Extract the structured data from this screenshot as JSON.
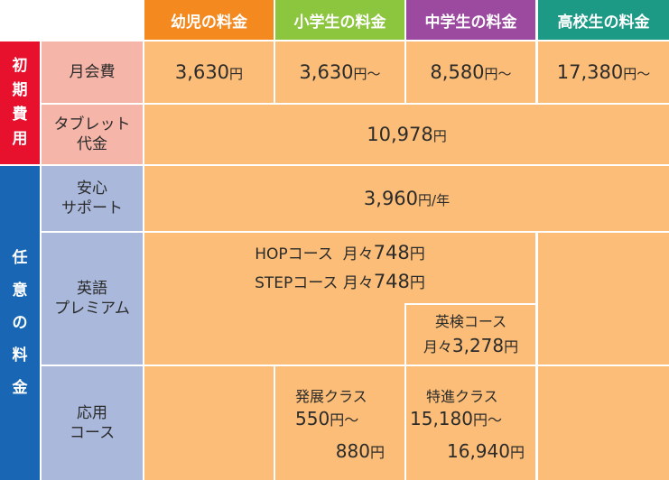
{
  "columns": {
    "kinder": {
      "label": "幼児の料金",
      "color": "#f4891f"
    },
    "elementary": {
      "label": "小学生の料金",
      "color": "#8cc63f"
    },
    "junior": {
      "label": "中学生の料金",
      "color": "#9b4aa0"
    },
    "high": {
      "label": "高校生の料金",
      "color": "#1c9a86"
    }
  },
  "groups": {
    "initial": {
      "chars": [
        "初",
        "期",
        "費",
        "用"
      ],
      "color": "#e8112d"
    },
    "optional": {
      "chars": [
        "任",
        "意",
        "の",
        "料",
        "金"
      ],
      "color": "#1966b4"
    }
  },
  "rows": {
    "monthly": {
      "label": "月会費",
      "kinder": {
        "num": "3,630",
        "unit": "円"
      },
      "elementary": {
        "num": "3,630",
        "unit": "円～"
      },
      "junior": {
        "num": "8,580",
        "unit": "円～"
      },
      "high": {
        "num": "17,380",
        "unit": "円～"
      }
    },
    "tablet": {
      "label_line1": "タブレット",
      "label_line2": "代金",
      "price": {
        "num": "10,978",
        "unit": "円"
      }
    },
    "support": {
      "label_line1": "安心",
      "label_line2": "サポート",
      "price": {
        "num": "3,960",
        "unit": "円/年"
      }
    },
    "premium": {
      "label_line1": "英語",
      "label_line2": "プレミアム",
      "hop": {
        "name": "HOPコース",
        "prefix": "月々",
        "num": "748",
        "unit": "円"
      },
      "step": {
        "name": "STEPコース",
        "prefix": "月々",
        "num": "748",
        "unit": "円"
      },
      "eiken": {
        "name": "英検コース",
        "prefix": "月々",
        "num": "3,278",
        "unit": "円"
      }
    },
    "applied": {
      "label_line1": "応用",
      "label_line2": "コース",
      "hatten": {
        "name": "発展クラス",
        "from_num": "550",
        "from_unit": "円～",
        "to_num": "880",
        "to_unit": "円"
      },
      "tokushin": {
        "name": "特進クラス",
        "from_num": "15,180",
        "from_unit": "円～",
        "to_num": "16,940",
        "to_unit": "円"
      }
    }
  }
}
